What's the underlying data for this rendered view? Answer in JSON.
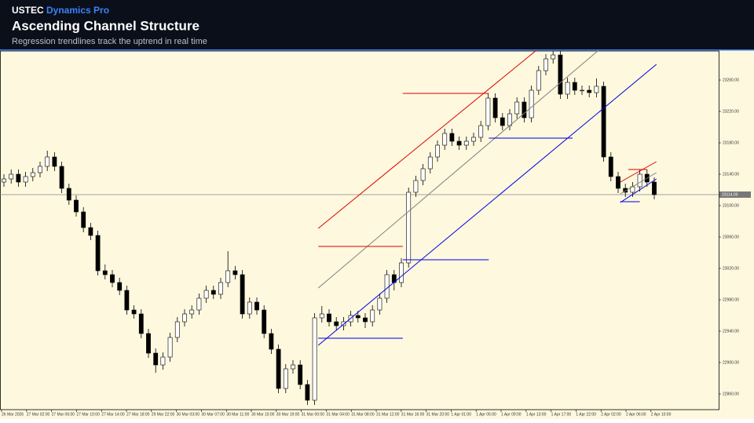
{
  "header": {
    "brand": "USTEC",
    "brand_accent": "Dynamics Pro",
    "title": "Ascending Channel Structure",
    "subtitle": "Regression trendlines track the uptrend in real time"
  },
  "chart_data": {
    "type": "candlestick",
    "categories": [
      "26 Mar 2026",
      "27 Mar 02:00",
      "27 Mar 06:00",
      "27 Mar 10:00",
      "27 Mar 14:00",
      "27 Mar 18:00",
      "29 Mar 22:00",
      "30 Mar 03:00",
      "30 Mar 07:00",
      "30 Mar 11:00",
      "30 Mar 15:00",
      "30 Mar 19:00",
      "31 Mar 00:00",
      "31 Mar 04:00",
      "31 Mar 08:00",
      "31 Mar 12:00",
      "31 Mar 16:00",
      "31 Mar 20:00",
      "1 Apr 01:00",
      "1 Apr 05:00",
      "1 Apr 09:00",
      "1 Apr 13:00",
      "1 Apr 17:00",
      "1 Apr 22:00",
      "2 Apr 02:00",
      "2 Apr 06:00",
      "2 Apr 10:00"
    ],
    "open": [
      23130,
      23134,
      23140,
      23130,
      23137,
      23142,
      23150,
      23162,
      23150,
      23122,
      23107,
      23092,
      23072,
      23062,
      23017,
      23012,
      23002,
      22992,
      22967,
      22962,
      22937,
      22912,
      22897,
      22907,
      22932,
      22952,
      22962,
      22967,
      22982,
      22992,
      22987,
      23002,
      23017,
      23012,
      22962,
      22977,
      22967,
      22937,
      22917,
      22867,
      22892,
      22897,
      22872,
      22852,
      22957,
      22962,
      22952,
      22947,
      22952,
      22960,
      22957,
      22952,
      22967,
      22982,
      23012,
      23002,
      23027,
      23117,
      23132,
      23147,
      23162,
      23177,
      23192,
      23182,
      23177,
      23182,
      23187,
      23202,
      23237,
      23212,
      23202,
      23217,
      23232,
      23212,
      23247,
      23272,
      23287,
      23292,
      23242,
      23257,
      23247,
      23247,
      23244,
      23252,
      23162,
      23137,
      23122,
      23117,
      23124,
      23140,
      23130
    ],
    "high": [
      23140,
      23146,
      23146,
      23143,
      23148,
      23156,
      23170,
      23168,
      23156,
      23128,
      23113,
      23098,
      23078,
      23068,
      23025,
      23018,
      23008,
      22998,
      22973,
      22968,
      22943,
      22918,
      22913,
      22938,
      22958,
      22968,
      22973,
      22988,
      22998,
      22998,
      23008,
      23042,
      23023,
      23018,
      22983,
      22983,
      22973,
      22943,
      22923,
      22898,
      22903,
      22903,
      22878,
      22963,
      22972,
      22968,
      22958,
      22958,
      22966,
      22966,
      22963,
      22973,
      22988,
      23018,
      23018,
      23033,
      23123,
      23138,
      23153,
      23168,
      23183,
      23198,
      23198,
      23188,
      23188,
      23193,
      23208,
      23243,
      23243,
      23218,
      23223,
      23238,
      23238,
      23253,
      23278,
      23293,
      23297,
      23297,
      23263,
      23263,
      23253,
      23253,
      23262,
      23258,
      23168,
      23143,
      23128,
      23130,
      23146,
      23146,
      23136
    ],
    "low": [
      23124,
      23128,
      23124,
      23124,
      23131,
      23136,
      23144,
      23144,
      23116,
      23101,
      23086,
      23066,
      23056,
      23011,
      23006,
      22996,
      22986,
      22961,
      22956,
      22931,
      22906,
      22887,
      22891,
      22901,
      22926,
      22946,
      22956,
      22961,
      22976,
      22981,
      22981,
      22996,
      23006,
      22956,
      22956,
      22961,
      22931,
      22911,
      22861,
      22861,
      22886,
      22866,
      22846,
      22846,
      22951,
      22946,
      22941,
      22941,
      22946,
      22951,
      22944,
      22946,
      22961,
      22976,
      22992,
      22996,
      23021,
      23111,
      23126,
      23141,
      23156,
      23171,
      23176,
      23171,
      23171,
      23176,
      23181,
      23196,
      23206,
      23196,
      23196,
      23211,
      23206,
      23206,
      23241,
      23266,
      23281,
      23236,
      23236,
      23241,
      23241,
      23238,
      23238,
      23156,
      23131,
      23116,
      23111,
      23111,
      23118,
      23124,
      23108
    ],
    "close": [
      23134,
      23140,
      23130,
      23137,
      23142,
      23150,
      23162,
      23150,
      23122,
      23107,
      23092,
      23072,
      23062,
      23017,
      23012,
      23002,
      22992,
      22967,
      22962,
      22937,
      22912,
      22897,
      22907,
      22932,
      22952,
      22962,
      22967,
      22982,
      22992,
      22987,
      23002,
      23017,
      23012,
      22962,
      22977,
      22967,
      22937,
      22917,
      22867,
      22892,
      22897,
      22872,
      22852,
      22957,
      22962,
      22952,
      22947,
      22952,
      22960,
      22957,
      22952,
      22967,
      22982,
      23012,
      23002,
      23027,
      23117,
      23132,
      23147,
      23162,
      23177,
      23192,
      23182,
      23177,
      23182,
      23187,
      23202,
      23237,
      23212,
      23202,
      23217,
      23232,
      23212,
      23247,
      23272,
      23287,
      23292,
      23242,
      23257,
      23247,
      23247,
      23244,
      23252,
      23162,
      23137,
      23122,
      23117,
      23124,
      23140,
      23130,
      23114
    ],
    "up_color": "#ffffff",
    "down_color": "#000000",
    "ylim": [
      22840,
      23298
    ],
    "yticks": [
      {
        "value": 22860,
        "label": "22860.00"
      },
      {
        "value": 22900,
        "label": "22900.00"
      },
      {
        "value": 22940,
        "label": "22940.00"
      },
      {
        "value": 22980,
        "label": "22980.00"
      },
      {
        "value": 23020,
        "label": "23020.00"
      },
      {
        "value": 23060,
        "label": "23060.00"
      },
      {
        "value": 23100,
        "label": "23100.00"
      },
      {
        "value": 23140,
        "label": "23140.00"
      },
      {
        "value": 23180,
        "label": "23180.00"
      },
      {
        "value": 23220,
        "label": "23220.00"
      },
      {
        "value": 23260,
        "label": "23260.00"
      }
    ],
    "last_price": 23114,
    "last_price_label": "23114.00",
    "lines": [
      {
        "color": "#e00000",
        "x": [
          43.5,
          73.7
        ],
        "y": [
          23071,
          23298
        ]
      },
      {
        "color": "#808080",
        "x": [
          43.5,
          82.3
        ],
        "y": [
          22995,
          23298
        ]
      },
      {
        "color": "#0000e0",
        "x": [
          43.5,
          90.3
        ],
        "y": [
          22922,
          23280
        ]
      },
      {
        "color": "#e00000",
        "x": [
          43.5,
          55.2
        ],
        "y": [
          23048,
          23048
        ]
      },
      {
        "color": "#0000e0",
        "x": [
          43.5,
          55.2
        ],
        "y": [
          22931,
          22931
        ]
      },
      {
        "color": "#e00000",
        "x": [
          55.2,
          67.1
        ],
        "y": [
          23243,
          23243
        ]
      },
      {
        "color": "#0000e0",
        "x": [
          55.2,
          67.1
        ],
        "y": [
          23031,
          23031
        ]
      },
      {
        "color": "#0000e0",
        "x": [
          67.1,
          78.7
        ],
        "y": [
          23186,
          23186
        ]
      },
      {
        "color": "#e00000",
        "x": [
          85.3,
          90.3
        ],
        "y": [
          23130,
          23156
        ]
      },
      {
        "color": "#808080",
        "x": [
          85.3,
          90.3
        ],
        "y": [
          23115,
          23142
        ]
      },
      {
        "color": "#0000e0",
        "x": [
          85.3,
          90.3
        ],
        "y": [
          23104,
          23134
        ]
      },
      {
        "color": "#e00000",
        "x": [
          86.4,
          89
        ],
        "y": [
          23146,
          23146
        ]
      },
      {
        "color": "#0000e0",
        "x": [
          85.3,
          88
        ],
        "y": [
          23105,
          23105
        ]
      }
    ]
  }
}
